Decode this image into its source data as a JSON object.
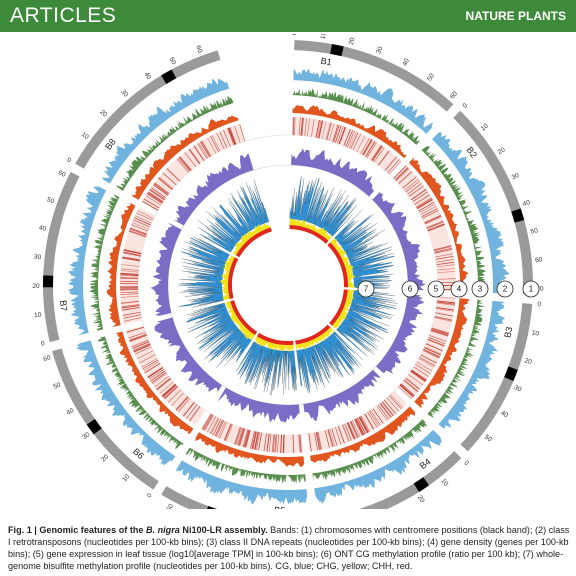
{
  "header": {
    "section": "ARTICLES",
    "journal": "NATURE PLANTS",
    "color": "#3e8a3b"
  },
  "figure": {
    "chromosomes": [
      {
        "name": "B1",
        "length": 62
      },
      {
        "name": "B2",
        "length": 72
      },
      {
        "name": "B3",
        "length": 58
      },
      {
        "name": "B4",
        "length": 57
      },
      {
        "name": "B5",
        "length": 55
      },
      {
        "name": "B6",
        "length": 62
      },
      {
        "name": "B7",
        "length": 62
      },
      {
        "name": "B8",
        "length": 66
      }
    ],
    "track_labels": [
      "7",
      "6",
      "5",
      "4",
      "3",
      "2",
      "1"
    ],
    "colors": {
      "chromosome": "#9a9a9a",
      "centromere": "#000000",
      "class1": "#6fb3de",
      "class2": "#3b7a2e",
      "gene_density": "#e0561e",
      "gene_expression": "#c0392b",
      "ont_methylation": "#7b6cc6",
      "cg": "#2f8fd1",
      "chg": "#f2e21a",
      "chh": "#e0261d"
    }
  },
  "caption": {
    "label": "Fig. 1 |",
    "title_pre": "Genomic features of the ",
    "species": "B. nigra",
    "title_post": " Ni100-LR assembly.",
    "body": "Bands: (1) chromosomes with centromere positions (black band); (2) class I retrotransposons (nucleotides per 100-kb bins); (3) class II DNA repeats (nucleotides per 100-kb bins); (4) gene density (genes per 100-kb bins); (5) gene expression in leaf tissue (log10[average TPM] in 100-kb bins); (6) ONT CG methylation profile (ratio per 100 kb); (7) whole-genome bisulfite methylation profile (nucleotides per 100-kb bins). CG, blue; CHG, yellow; CHH, red."
  }
}
